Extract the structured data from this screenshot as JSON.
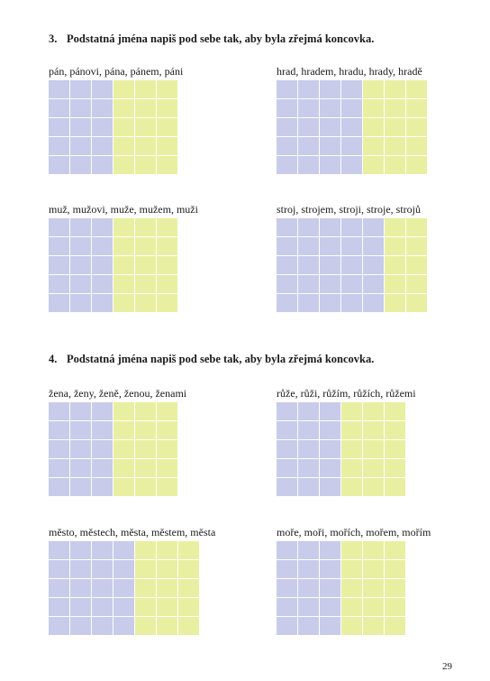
{
  "exercises": [
    {
      "number": "3.",
      "instruction": "Podstatná jména napiš pod sebe tak, aby byla zřejmá koncovka.",
      "tasks": [
        {
          "words": "pán, pánovi, pána, pánem, páni",
          "stem_columns": 3,
          "ending_columns": 3,
          "rows": 5
        },
        {
          "words": "hrad, hradem, hradu, hrady, hradě",
          "stem_columns": 4,
          "ending_columns": 3,
          "rows": 5
        },
        {
          "words": "muž, mužovi, muže, mužem, muži",
          "stem_columns": 3,
          "ending_columns": 3,
          "rows": 5
        },
        {
          "words": "stroj, strojem, stroji, stroje, strojů",
          "stem_columns": 5,
          "ending_columns": 2,
          "rows": 5
        }
      ]
    },
    {
      "number": "4.",
      "instruction": "Podstatná jména napiš pod sebe tak, aby byla zřejmá koncovka.",
      "tasks": [
        {
          "words": "žena, ženy, ženě, ženou, ženami",
          "stem_columns": 3,
          "ending_columns": 3,
          "rows": 5
        },
        {
          "words": "růže, růži, růžím, růžích, růžemi",
          "stem_columns": 3,
          "ending_columns": 3,
          "rows": 5
        },
        {
          "words": "město, městech, města, městem, města",
          "stem_columns": 4,
          "ending_columns": 3,
          "rows": 5
        },
        {
          "words": "moře, moři, mořích, mořem, mořím",
          "stem_columns": 3,
          "ending_columns": 3,
          "rows": 5
        }
      ]
    }
  ],
  "page_number": "29",
  "colors": {
    "stem": "#c8cbe9",
    "ending": "#e9efa0"
  }
}
